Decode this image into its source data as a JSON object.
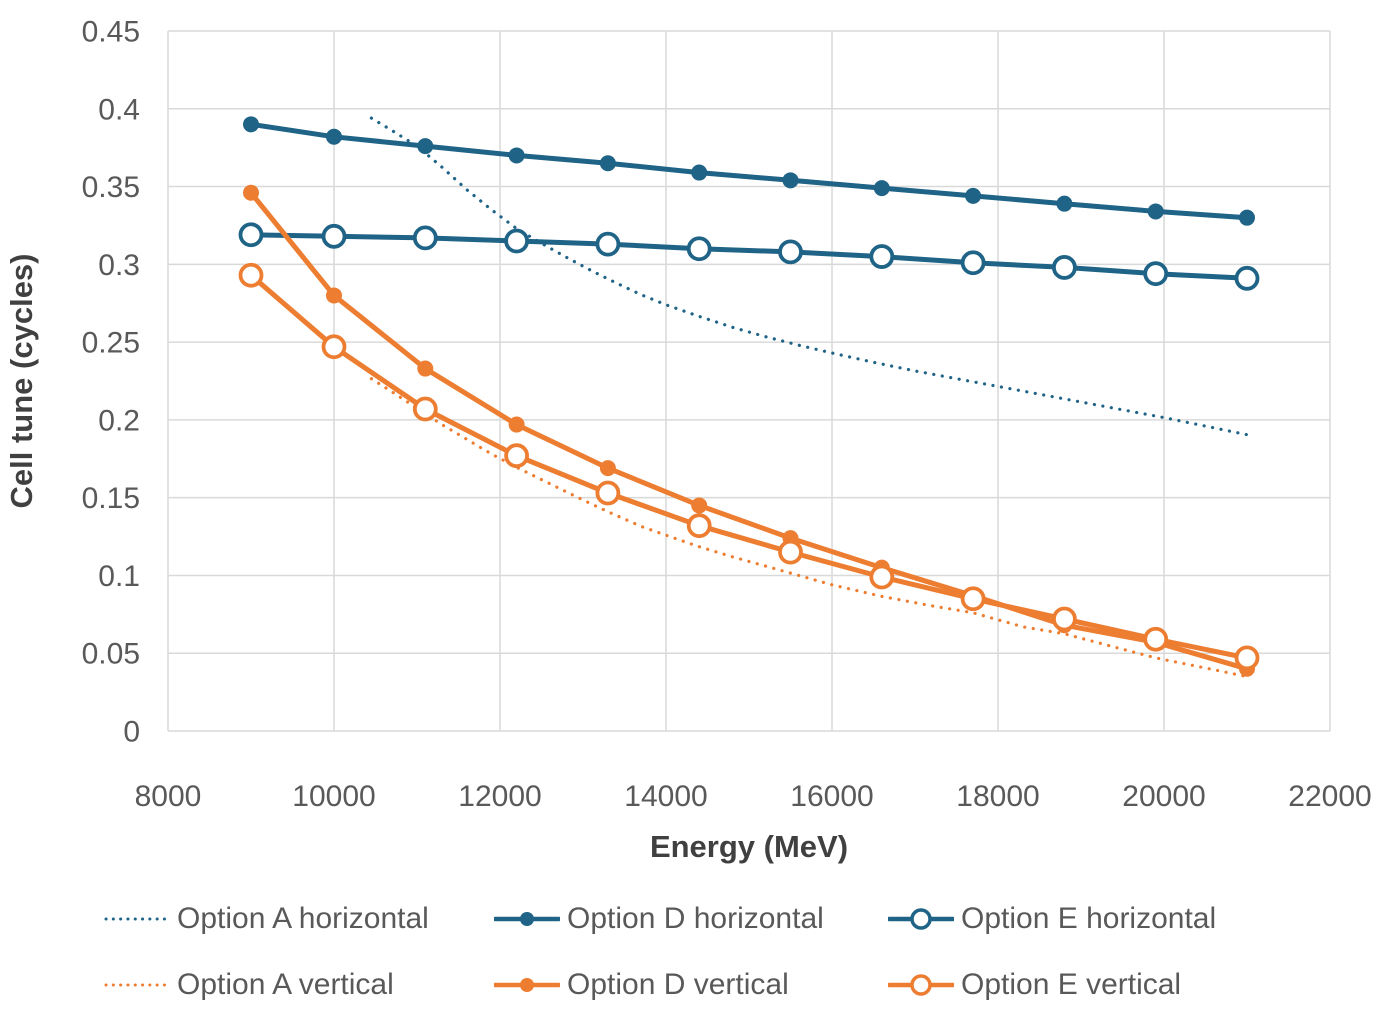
{
  "chart_data": {
    "type": "line",
    "title": "",
    "xlabel": "Energy (MeV)",
    "ylabel": "Cell tune (cycles)",
    "xlim": [
      8000,
      22000
    ],
    "ylim": [
      0,
      0.45
    ],
    "x_ticks": [
      8000,
      10000,
      12000,
      14000,
      16000,
      18000,
      20000,
      22000
    ],
    "y_ticks": [
      0,
      0.05,
      0.1,
      0.15,
      0.2,
      0.25,
      0.3,
      0.35,
      0.4,
      0.45
    ],
    "y_tick_labels": [
      "0",
      "0.05",
      "0.1",
      "0.15",
      "0.2",
      "0.25",
      "0.3",
      "0.35",
      "0.4",
      "0.45"
    ],
    "grid": true,
    "legend_position": "bottom",
    "colors": {
      "blue": "#1F6387",
      "orange": "#ED7D31",
      "gridline": "#D9D9D9",
      "tick_text": "#595959",
      "axis_title_text": "#404040",
      "marker_fill_open": "#FFFFFF"
    },
    "series": [
      {
        "name": "Option A horizontal",
        "color": "#1F6387",
        "style": "dotted",
        "x": [
          10450,
          10700,
          11000,
          11300,
          11600,
          11900,
          12200,
          12500,
          12800,
          13100,
          13400,
          13700,
          14000,
          14400,
          14800,
          15200,
          15600,
          16000,
          16500,
          17000,
          17500,
          18000,
          18500,
          19000,
          19500,
          20000,
          20500,
          21000
        ],
        "y": [
          0.394,
          0.386,
          0.376,
          0.3625,
          0.348,
          0.335,
          0.323,
          0.3135,
          0.3045,
          0.296,
          0.288,
          0.2805,
          0.274,
          0.2665,
          0.2595,
          0.2535,
          0.248,
          0.243,
          0.237,
          0.2315,
          0.2265,
          0.2215,
          0.2165,
          0.2115,
          0.2065,
          0.2015,
          0.196,
          0.1905
        ]
      },
      {
        "name": "Option D horizontal",
        "color": "#1F6387",
        "style": "solid-filled",
        "x": [
          9000,
          10000,
          11100,
          12200,
          13300,
          14400,
          15500,
          16600,
          17700,
          18800,
          19900,
          21000
        ],
        "y": [
          0.39,
          0.382,
          0.376,
          0.37,
          0.365,
          0.359,
          0.354,
          0.349,
          0.344,
          0.339,
          0.334,
          0.33
        ]
      },
      {
        "name": "Option E horizontal",
        "color": "#1F6387",
        "style": "solid-open",
        "x": [
          9000,
          10000,
          11100,
          12200,
          13300,
          14400,
          15500,
          16600,
          17700,
          18800,
          19900,
          21000
        ],
        "y": [
          0.319,
          0.318,
          0.317,
          0.315,
          0.313,
          0.31,
          0.308,
          0.305,
          0.301,
          0.298,
          0.294,
          0.291
        ]
      },
      {
        "name": "Option A vertical",
        "color": "#ED7D31",
        "style": "dotted",
        "x": [
          10450,
          10700,
          11000,
          11300,
          11600,
          11900,
          12200,
          12600,
          13000,
          13300,
          13700,
          14100,
          14400,
          14800,
          15200,
          15500,
          16000,
          16600,
          17200,
          17700,
          18300,
          18800,
          19400,
          19900,
          20500,
          21000
        ],
        "y": [
          0.2265,
          0.218,
          0.2075,
          0.197,
          0.1875,
          0.178,
          0.1695,
          0.159,
          0.1485,
          0.141,
          0.1315,
          0.124,
          0.1185,
          0.112,
          0.106,
          0.1015,
          0.094,
          0.0865,
          0.0805,
          0.076,
          0.067,
          0.0625,
          0.054,
          0.047,
          0.0405,
          0.035
        ]
      },
      {
        "name": "Option D vertical",
        "color": "#ED7D31",
        "style": "solid-filled",
        "x": [
          9000,
          10000,
          11100,
          12200,
          13300,
          14400,
          15500,
          16600,
          17700,
          18800,
          19900,
          21000
        ],
        "y": [
          0.346,
          0.28,
          0.233,
          0.197,
          0.169,
          0.145,
          0.124,
          0.105,
          0.087,
          0.068,
          0.057,
          0.04
        ]
      },
      {
        "name": "Option E vertical",
        "color": "#ED7D31",
        "style": "solid-open",
        "x": [
          9000,
          10000,
          11100,
          12200,
          13300,
          14400,
          15500,
          16600,
          17700,
          18800,
          19900,
          21000
        ],
        "y": [
          0.293,
          0.247,
          0.207,
          0.177,
          0.153,
          0.132,
          0.115,
          0.099,
          0.085,
          0.072,
          0.059,
          0.047
        ]
      }
    ]
  },
  "legend": {
    "rows": [
      [
        "Option A horizontal",
        "Option D horizontal",
        "Option E horizontal"
      ],
      [
        "Option A vertical",
        "Option D vertical",
        "Option E vertical"
      ]
    ]
  }
}
